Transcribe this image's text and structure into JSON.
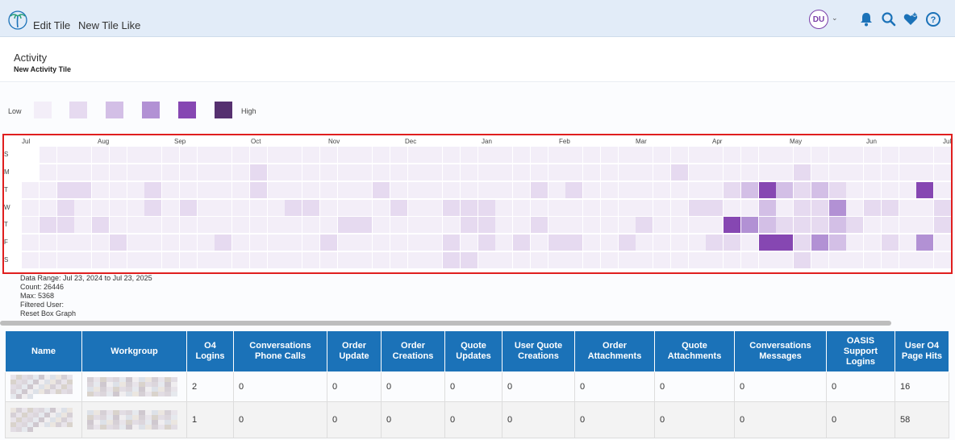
{
  "header": {
    "crumbs": [
      "Edit Tile",
      "New Tile Like"
    ],
    "user_initials": "DU"
  },
  "page": {
    "title": "Activity",
    "subtitle": "New Activity Tile"
  },
  "legend": {
    "low_label": "Low",
    "high_label": "High",
    "colors": [
      "#f3eef8",
      "#e6daf0",
      "#d3bfe6",
      "#b291d4",
      "#8647b2",
      "#56306f"
    ]
  },
  "heatmap": {
    "months": [
      "Jul",
      "Aug",
      "Sep",
      "Oct",
      "Nov",
      "Dec",
      "Jan",
      "Feb",
      "Mar",
      "Apr",
      "May",
      "Jun",
      "Jul"
    ],
    "day_labels": [
      "S",
      "M",
      "T",
      "W",
      "T",
      "F",
      "S"
    ],
    "weeks": 53,
    "start_day_offset": 2,
    "levels": [
      [
        0,
        0,
        0,
        0,
        0,
        0,
        0,
        0,
        0,
        0,
        0,
        0,
        0,
        0,
        0,
        0,
        0,
        0,
        0,
        0,
        0,
        0,
        0,
        0,
        0,
        0,
        0,
        0,
        0,
        0,
        0,
        0,
        0,
        0,
        0,
        0,
        0,
        0,
        0,
        0,
        0,
        0,
        0,
        0,
        0,
        0,
        0,
        0,
        0,
        0,
        0,
        0,
        0
      ],
      [
        0,
        0,
        0,
        0,
        0,
        0,
        0,
        0,
        0,
        0,
        0,
        0,
        0,
        1,
        0,
        0,
        0,
        0,
        0,
        0,
        0,
        0,
        0,
        0,
        0,
        0,
        0,
        0,
        0,
        0,
        0,
        0,
        0,
        0,
        0,
        0,
        0,
        1,
        0,
        0,
        0,
        0,
        0,
        0,
        1,
        0,
        0,
        0,
        0,
        0,
        0,
        0,
        0
      ],
      [
        0,
        0,
        1,
        1,
        0,
        0,
        0,
        1,
        0,
        0,
        0,
        0,
        0,
        1,
        0,
        0,
        0,
        0,
        0,
        0,
        1,
        0,
        0,
        0,
        0,
        0,
        0,
        0,
        0,
        1,
        0,
        1,
        0,
        0,
        0,
        0,
        0,
        0,
        0,
        0,
        1,
        2,
        4,
        2,
        1,
        2,
        1,
        0,
        0,
        0,
        0,
        4,
        0
      ],
      [
        0,
        0,
        1,
        0,
        0,
        0,
        0,
        1,
        0,
        1,
        0,
        0,
        0,
        0,
        0,
        1,
        1,
        0,
        0,
        0,
        0,
        1,
        0,
        0,
        1,
        1,
        1,
        0,
        0,
        0,
        0,
        0,
        0,
        0,
        0,
        0,
        0,
        0,
        1,
        1,
        0,
        0,
        2,
        0,
        1,
        1,
        3,
        0,
        1,
        1,
        0,
        0,
        1
      ],
      [
        0,
        1,
        1,
        0,
        1,
        0,
        0,
        0,
        0,
        0,
        0,
        0,
        0,
        0,
        0,
        0,
        0,
        0,
        1,
        1,
        0,
        0,
        0,
        0,
        0,
        1,
        1,
        0,
        0,
        1,
        0,
        0,
        0,
        0,
        0,
        1,
        0,
        0,
        0,
        0,
        4,
        3,
        2,
        1,
        1,
        1,
        2,
        1,
        0,
        0,
        0,
        0,
        1
      ],
      [
        0,
        0,
        0,
        0,
        0,
        1,
        0,
        0,
        0,
        0,
        0,
        1,
        0,
        0,
        0,
        0,
        0,
        1,
        0,
        0,
        0,
        0,
        0,
        0,
        1,
        0,
        1,
        0,
        1,
        0,
        1,
        1,
        0,
        0,
        1,
        0,
        0,
        0,
        0,
        1,
        1,
        0,
        4,
        4,
        1,
        3,
        2,
        0,
        0,
        1,
        0,
        3,
        0
      ],
      [
        0,
        0,
        0,
        0,
        0,
        0,
        0,
        0,
        0,
        0,
        0,
        0,
        0,
        0,
        0,
        0,
        0,
        0,
        0,
        0,
        0,
        0,
        0,
        0,
        1,
        1,
        0,
        0,
        0,
        0,
        0,
        0,
        0,
        0,
        0,
        0,
        0,
        0,
        0,
        0,
        0,
        0,
        0,
        0,
        1,
        0,
        0,
        0,
        0,
        0,
        0,
        0,
        0
      ]
    ]
  },
  "stats": {
    "data_range": "Data Range: Jul 23, 2024 to Jul 23, 2025",
    "count": "Count: 26446",
    "max": "Max: 5368",
    "filtered_user": "Filtered User:",
    "reset": "Reset Box Graph"
  },
  "table": {
    "columns": [
      "Name",
      "Workgroup",
      "O4 Logins",
      "Conversations Phone Calls",
      "Order Update",
      "Order Creations",
      "Quote Updates",
      "User Quote Creations",
      "Order Attachments",
      "Quote Attachments",
      "Conversations Messages",
      "OASIS Support Logins",
      "User O4 Page Hits"
    ],
    "rows": [
      [
        "2",
        "0",
        "0",
        "0",
        "0",
        "0",
        "0",
        "0",
        "0",
        "0",
        "16"
      ],
      [
        "1",
        "0",
        "0",
        "0",
        "0",
        "0",
        "0",
        "0",
        "0",
        "0",
        "58"
      ]
    ]
  },
  "icons": [
    "palm-logo-icon",
    "bell-icon",
    "search-icon",
    "heart-plus-icon",
    "help-icon"
  ],
  "colors": {
    "header_bg": "#e2ecf8",
    "table_header": "#1b72b8",
    "highlight_border": "#e01e1e",
    "accent": "#7a3ea8"
  }
}
